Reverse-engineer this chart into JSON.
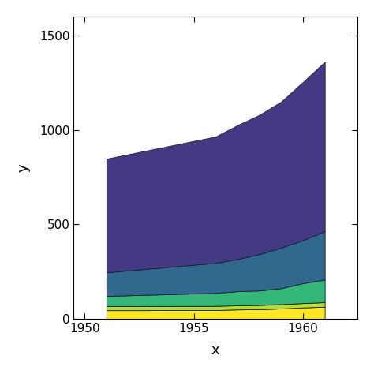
{
  "x": [
    1951,
    1956,
    1957,
    1958,
    1959,
    1960,
    1961
  ],
  "layers": [
    [
      45.939,
      46.796,
      49.955,
      51.176,
      55.11,
      60.423,
      64.63
    ],
    [
      21.574,
      21.938,
      22.165,
      22.45,
      23.041,
      23.253,
      23.776
    ],
    [
      54.172,
      68.78,
      74.296,
      76.488,
      84.193,
      105.217,
      119.343
    ],
    [
      124.555,
      158.736,
      169.67,
      192.647,
      214.571,
      227.647,
      256.177
    ],
    [
      601.048,
      668.335,
      708.463,
      736.215,
      772.232,
      836.834,
      896.401
    ]
  ],
  "colors": [
    "#FDE725",
    "#B5DE2B",
    "#35B779",
    "#31688E",
    "#443983"
  ],
  "xlabel": "x",
  "ylabel": "y",
  "xlim": [
    1949.5,
    1962.5
  ],
  "ylim": [
    0,
    1600
  ],
  "yticks": [
    0,
    500,
    1000,
    1500
  ],
  "xticks": [
    1950,
    1955,
    1960
  ],
  "background_color": "#ffffff",
  "panel_background": "#ffffff",
  "edge_color": "#1a1a2e"
}
